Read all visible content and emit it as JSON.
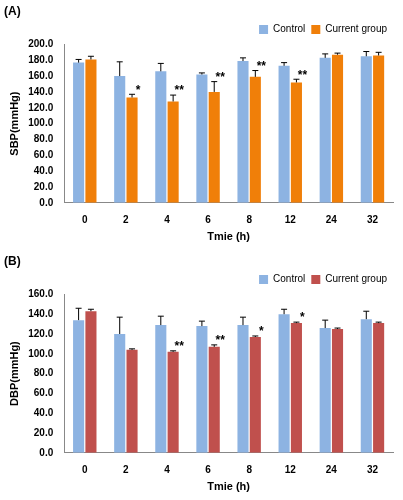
{
  "chart_data": [
    {
      "type": "bar",
      "title": "(A)",
      "x_label": "Tmie (h)",
      "y_label": "SBP(mmHg)",
      "categories": [
        "0",
        "2",
        "4",
        "6",
        "8",
        "12",
        "24",
        "32"
      ],
      "series": [
        {
          "name": "Control",
          "color": "#8db3e2",
          "values": [
            177,
            160,
            166,
            162,
            179,
            173,
            183,
            185
          ],
          "errors": [
            4,
            18,
            10,
            2,
            4,
            4,
            5,
            6
          ],
          "annotations": [
            null,
            null,
            null,
            null,
            null,
            null,
            null,
            null
          ]
        },
        {
          "name": "Current group",
          "color": "#f07f09",
          "values": [
            181,
            133,
            128,
            140,
            159,
            152,
            187,
            186
          ],
          "errors": [
            4,
            4,
            8,
            13,
            8,
            4,
            2,
            4
          ],
          "annotations": [
            null,
            "*",
            "**",
            "**",
            "**",
            "**",
            null,
            null
          ]
        }
      ],
      "ylim": [
        0,
        200
      ],
      "yticks": [
        {
          "value": 0,
          "label": "0.0"
        },
        {
          "value": 20,
          "label": "20.0"
        },
        {
          "value": 40,
          "label": "40.0"
        },
        {
          "value": 60,
          "label": "60.0"
        },
        {
          "value": 80,
          "label": "80.0"
        },
        {
          "value": 100,
          "label": "100.0"
        },
        {
          "value": 120,
          "label": "120.0"
        },
        {
          "value": 140,
          "label": "140.0"
        },
        {
          "value": 160,
          "label": "160.0"
        },
        {
          "value": 180,
          "label": "180.0"
        },
        {
          "value": 200,
          "label": "200.0"
        }
      ],
      "grid": false,
      "legend": "upper right"
    },
    {
      "type": "bar",
      "title": "(B)",
      "x_label": "Tmie (h)",
      "y_label": "DBP(mmHg)",
      "categories": [
        "0",
        "2",
        "4",
        "6",
        "8",
        "12",
        "24",
        "32"
      ],
      "series": [
        {
          "name": "Control",
          "color": "#8db3e2",
          "values": [
            134,
            120,
            129,
            128,
            129,
            140,
            126,
            135
          ],
          "errors": [
            12,
            17,
            9,
            5,
            8,
            5,
            8,
            8
          ],
          "annotations": [
            null,
            null,
            null,
            null,
            null,
            null,
            null,
            null
          ]
        },
        {
          "name": "Current group",
          "color": "#c0504d",
          "values": [
            143,
            104,
            102,
            107,
            117,
            131,
            125,
            131
          ],
          "errors": [
            2,
            1,
            1,
            2,
            1,
            1,
            1,
            1
          ],
          "annotations": [
            null,
            null,
            "**",
            "**",
            "*",
            "*",
            null,
            null
          ]
        }
      ],
      "ylim": [
        0,
        160
      ],
      "yticks": [
        {
          "value": 0,
          "label": "0.0"
        },
        {
          "value": 20,
          "label": "20.0"
        },
        {
          "value": 40,
          "label": "40.0"
        },
        {
          "value": 60,
          "label": "60.0"
        },
        {
          "value": 80,
          "label": "80.0"
        },
        {
          "value": 100,
          "label": "100.0"
        },
        {
          "value": 120,
          "label": "120.0"
        },
        {
          "value": 140,
          "label": "140.0"
        },
        {
          "value": 160,
          "label": "160.0"
        }
      ],
      "grid": false,
      "legend": "upper right"
    }
  ]
}
